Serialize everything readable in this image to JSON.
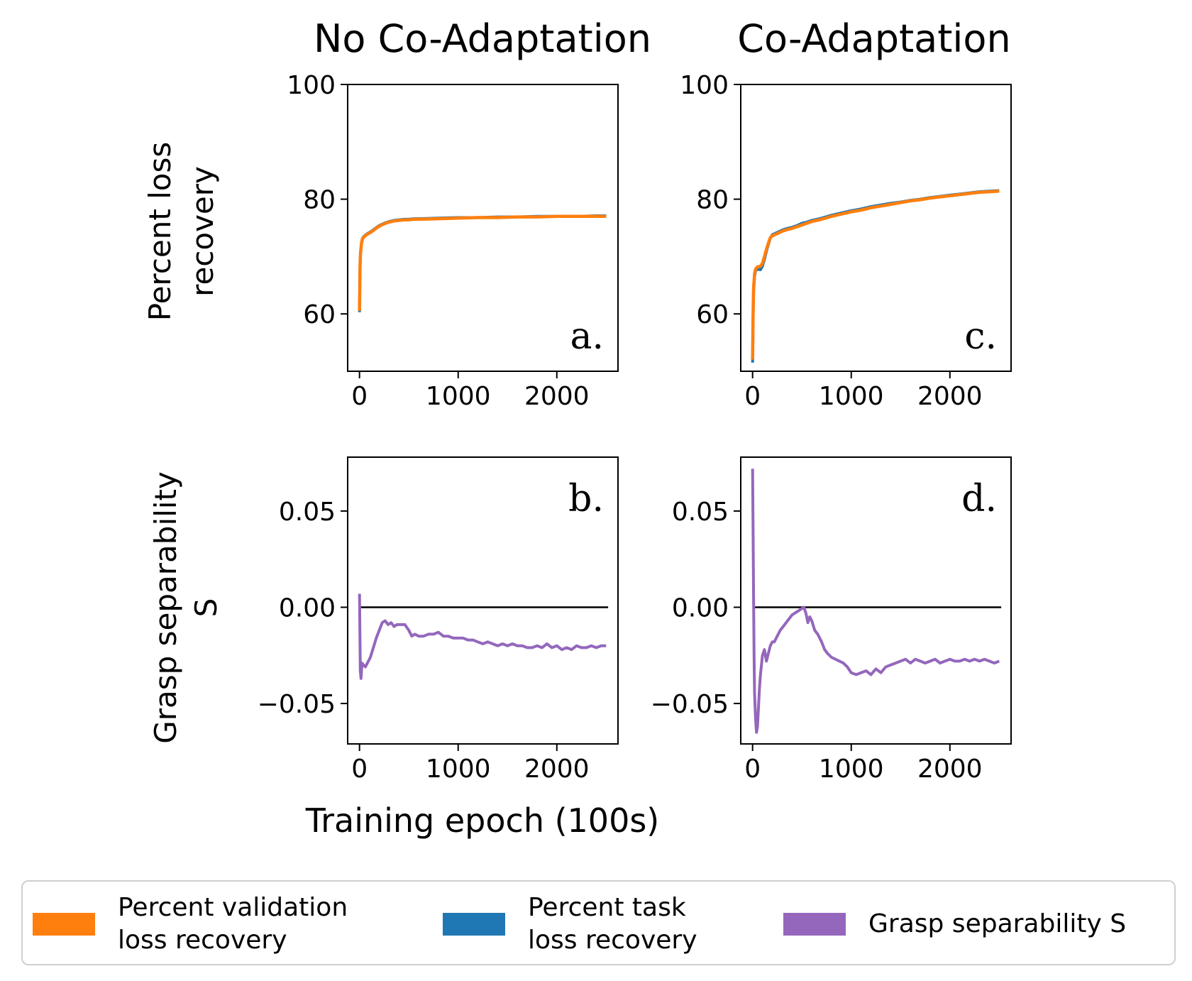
{
  "figure": {
    "column_titles": [
      "No Co-Adaptation",
      "Co-Adaptation"
    ],
    "row_ylabels": [
      [
        "Percent loss",
        "recovery"
      ],
      [
        "Grasp separability",
        "S"
      ]
    ],
    "xlabel": "Training epoch (100s)"
  },
  "legend": {
    "items": [
      {
        "label": "Percent validation\nloss recovery",
        "color": "#ff7f0e"
      },
      {
        "label": "Percent task\nloss recovery",
        "color": "#1f77b4"
      },
      {
        "label": "Grasp separability S",
        "color": "#9467bd"
      }
    ]
  },
  "chart_data": [
    {
      "type": "line",
      "panel": "a.",
      "title": "No Co-Adaptation",
      "ylabel": "Percent loss recovery",
      "xlabel": "",
      "xlim": [
        -120,
        2620
      ],
      "ylim": [
        50,
        100
      ],
      "xticks": [
        0,
        1000,
        2000
      ],
      "xtick_labels": [
        "0",
        "1000",
        "2000"
      ],
      "yticks": [
        60,
        80,
        100
      ],
      "ytick_labels": [
        "60",
        "80",
        "100"
      ],
      "series": [
        {
          "name": "Percent task loss recovery",
          "color": "#1f77b4",
          "x": [
            0,
            5,
            10,
            20,
            30,
            50,
            80,
            120,
            160,
            200,
            250,
            300,
            350,
            400,
            450,
            500,
            550,
            600,
            800,
            1000,
            1200,
            1400,
            1600,
            1800,
            2000,
            2200,
            2400,
            2500
          ],
          "y": [
            60.3,
            68.0,
            70.5,
            72.4,
            73.2,
            73.6,
            74.0,
            74.4,
            74.9,
            75.4,
            75.8,
            76.1,
            76.3,
            76.4,
            76.5,
            76.5,
            76.6,
            76.6,
            76.7,
            76.8,
            76.8,
            76.9,
            76.9,
            77.0,
            77.0,
            77.0,
            77.1,
            77.1
          ]
        },
        {
          "name": "Percent validation loss recovery",
          "color": "#ff7f0e",
          "x": [
            0,
            5,
            10,
            20,
            30,
            50,
            80,
            120,
            160,
            200,
            250,
            300,
            350,
            400,
            450,
            500,
            550,
            600,
            800,
            1000,
            1200,
            1400,
            1600,
            1800,
            2000,
            2200,
            2400,
            2500
          ],
          "y": [
            60.5,
            68.2,
            70.6,
            72.3,
            73.1,
            73.5,
            73.9,
            74.3,
            74.8,
            75.3,
            75.7,
            76.0,
            76.2,
            76.3,
            76.4,
            76.4,
            76.5,
            76.5,
            76.6,
            76.7,
            76.8,
            76.8,
            76.9,
            76.9,
            77.0,
            77.0,
            77.0,
            77.0
          ]
        }
      ]
    },
    {
      "type": "line",
      "panel": "b.",
      "title": "",
      "ylabel": "Grasp separability S",
      "xlabel": "Training epoch (100s)",
      "xlim": [
        -120,
        2620
      ],
      "ylim": [
        -0.071,
        0.078
      ],
      "xticks": [
        0,
        1000,
        2000
      ],
      "xtick_labels": [
        "0",
        "1000",
        "2000"
      ],
      "yticks": [
        -0.05,
        0.0,
        0.05
      ],
      "ytick_labels": [
        "−0.05",
        "0.00",
        "0.05"
      ],
      "hline": 0,
      "series": [
        {
          "name": "Grasp separability S",
          "color": "#9467bd",
          "x": [
            0,
            8,
            15,
            25,
            40,
            60,
            80,
            110,
            140,
            170,
            200,
            230,
            260,
            290,
            320,
            350,
            380,
            420,
            460,
            500,
            530,
            560,
            600,
            650,
            700,
            750,
            800,
            850,
            900,
            950,
            1000,
            1050,
            1100,
            1150,
            1200,
            1250,
            1300,
            1350,
            1400,
            1450,
            1500,
            1550,
            1600,
            1650,
            1700,
            1750,
            1800,
            1850,
            1900,
            1950,
            2000,
            2050,
            2100,
            2150,
            2200,
            2250,
            2300,
            2350,
            2400,
            2450,
            2500
          ],
          "y": [
            0.007,
            -0.033,
            -0.037,
            -0.029,
            -0.03,
            -0.031,
            -0.029,
            -0.026,
            -0.021,
            -0.016,
            -0.012,
            -0.008,
            -0.007,
            -0.009,
            -0.008,
            -0.01,
            -0.009,
            -0.009,
            -0.009,
            -0.012,
            -0.015,
            -0.014,
            -0.015,
            -0.015,
            -0.014,
            -0.014,
            -0.013,
            -0.015,
            -0.015,
            -0.016,
            -0.016,
            -0.016,
            -0.017,
            -0.017,
            -0.018,
            -0.019,
            -0.018,
            -0.019,
            -0.02,
            -0.019,
            -0.02,
            -0.019,
            -0.02,
            -0.02,
            -0.021,
            -0.021,
            -0.02,
            -0.021,
            -0.019,
            -0.021,
            -0.02,
            -0.022,
            -0.021,
            -0.022,
            -0.02,
            -0.021,
            -0.021,
            -0.02,
            -0.021,
            -0.02,
            -0.02
          ]
        }
      ]
    },
    {
      "type": "line",
      "panel": "c.",
      "title": "Co-Adaptation",
      "ylabel": "",
      "xlabel": "",
      "xlim": [
        -120,
        2620
      ],
      "ylim": [
        50,
        100
      ],
      "xticks": [
        0,
        1000,
        2000
      ],
      "xtick_labels": [
        "0",
        "1000",
        "2000"
      ],
      "yticks": [
        60,
        80,
        100
      ],
      "ytick_labels": [
        "60",
        "80",
        "100"
      ],
      "series": [
        {
          "name": "Percent task loss recovery",
          "color": "#1f77b4",
          "x": [
            0,
            5,
            10,
            20,
            30,
            50,
            80,
            100,
            120,
            150,
            180,
            200,
            250,
            300,
            350,
            400,
            450,
            500,
            550,
            600,
            650,
            700,
            800,
            900,
            1000,
            1100,
            1200,
            1300,
            1400,
            1500,
            1600,
            1700,
            1800,
            1900,
            2000,
            2100,
            2200,
            2300,
            2400,
            2500
          ],
          "y": [
            51.5,
            59.0,
            64.0,
            66.5,
            67.5,
            67.8,
            67.7,
            68.3,
            69.5,
            71.5,
            73.2,
            73.8,
            74.2,
            74.6,
            74.9,
            75.1,
            75.4,
            75.8,
            76.0,
            76.3,
            76.5,
            76.7,
            77.2,
            77.6,
            78.0,
            78.3,
            78.7,
            79.0,
            79.3,
            79.5,
            79.8,
            80.0,
            80.3,
            80.5,
            80.7,
            80.9,
            81.1,
            81.3,
            81.4,
            81.5
          ]
        },
        {
          "name": "Percent validation loss recovery",
          "color": "#ff7f0e",
          "x": [
            0,
            5,
            10,
            20,
            30,
            50,
            80,
            100,
            120,
            150,
            180,
            200,
            250,
            300,
            350,
            400,
            450,
            500,
            550,
            600,
            650,
            700,
            800,
            900,
            1000,
            1100,
            1200,
            1300,
            1400,
            1500,
            1600,
            1700,
            1800,
            1900,
            2000,
            2100,
            2200,
            2300,
            2400,
            2500
          ],
          "y": [
            52.0,
            60.0,
            64.5,
            67.0,
            67.8,
            68.2,
            68.3,
            68.8,
            70.0,
            71.8,
            73.3,
            73.6,
            74.0,
            74.4,
            74.7,
            74.9,
            75.2,
            75.5,
            75.8,
            76.1,
            76.3,
            76.5,
            77.0,
            77.4,
            77.8,
            78.1,
            78.5,
            78.8,
            79.1,
            79.4,
            79.7,
            79.9,
            80.2,
            80.4,
            80.6,
            80.8,
            81.0,
            81.2,
            81.3,
            81.4
          ]
        }
      ]
    },
    {
      "type": "line",
      "panel": "d.",
      "title": "",
      "ylabel": "",
      "xlabel": "",
      "xlim": [
        -120,
        2620
      ],
      "ylim": [
        -0.071,
        0.078
      ],
      "xticks": [
        0,
        1000,
        2000
      ],
      "xtick_labels": [
        "0",
        "1000",
        "2000"
      ],
      "yticks": [
        -0.05,
        0.0,
        0.05
      ],
      "ytick_labels": [
        "−0.05",
        "0.00",
        "0.05"
      ],
      "hline": 0,
      "series": [
        {
          "name": "Grasp separability S",
          "color": "#9467bd",
          "x": [
            0,
            5,
            10,
            15,
            20,
            30,
            40,
            50,
            60,
            70,
            80,
            100,
            120,
            140,
            160,
            180,
            200,
            220,
            250,
            280,
            310,
            340,
            370,
            400,
            430,
            460,
            490,
            520,
            540,
            560,
            580,
            600,
            630,
            660,
            700,
            730,
            760,
            800,
            840,
            880,
            920,
            960,
            1000,
            1050,
            1100,
            1150,
            1200,
            1250,
            1300,
            1350,
            1400,
            1450,
            1500,
            1550,
            1600,
            1650,
            1700,
            1750,
            1800,
            1850,
            1900,
            1950,
            2000,
            2050,
            2100,
            2150,
            2200,
            2250,
            2300,
            2350,
            2400,
            2450,
            2500
          ],
          "y": [
            0.072,
            0.04,
            0.005,
            -0.025,
            -0.045,
            -0.058,
            -0.065,
            -0.062,
            -0.052,
            -0.042,
            -0.035,
            -0.025,
            -0.022,
            -0.028,
            -0.024,
            -0.02,
            -0.018,
            -0.018,
            -0.015,
            -0.012,
            -0.01,
            -0.008,
            -0.006,
            -0.004,
            -0.003,
            -0.002,
            -0.001,
            0.0,
            -0.003,
            -0.008,
            -0.005,
            -0.007,
            -0.012,
            -0.014,
            -0.018,
            -0.022,
            -0.024,
            -0.026,
            -0.027,
            -0.028,
            -0.029,
            -0.031,
            -0.034,
            -0.035,
            -0.034,
            -0.033,
            -0.035,
            -0.032,
            -0.034,
            -0.031,
            -0.03,
            -0.029,
            -0.028,
            -0.027,
            -0.029,
            -0.027,
            -0.028,
            -0.029,
            -0.028,
            -0.027,
            -0.029,
            -0.028,
            -0.027,
            -0.028,
            -0.028,
            -0.027,
            -0.028,
            -0.027,
            -0.028,
            -0.027,
            -0.028,
            -0.029,
            -0.028
          ]
        }
      ]
    }
  ]
}
